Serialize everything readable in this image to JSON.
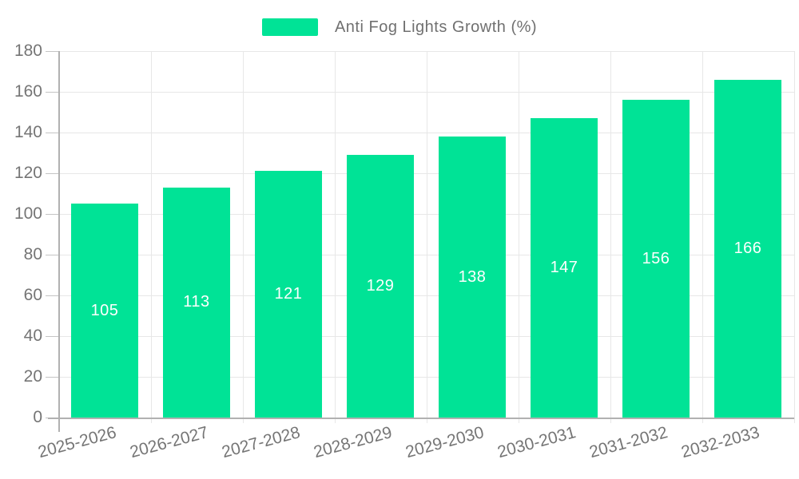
{
  "legend": {
    "label": "Anti Fog Lights Growth (%)"
  },
  "chart_data": {
    "type": "bar",
    "title": "Anti Fog Lights Growth (%)",
    "categories": [
      "2025-2026",
      "2026-2027",
      "2027-2028",
      "2028-2029",
      "2029-2030",
      "2030-2031",
      "2031-2032",
      "2032-2033"
    ],
    "series": [
      {
        "name": "Anti Fog Lights Growth (%)",
        "values": [
          105,
          113,
          121,
          129,
          138,
          147,
          156,
          166
        ]
      }
    ],
    "ylim": [
      0,
      180
    ],
    "yticks": [
      0,
      20,
      40,
      60,
      80,
      100,
      120,
      140,
      160,
      180
    ],
    "grid": true,
    "legend_position": "top",
    "x_label_rotation_deg": -15,
    "bar_color": "#00E396",
    "bar_label_color": "#ffffff",
    "axis_label_color": "#757575",
    "grid_color": "#e7e7e7",
    "axis_line_color": "#b1b1b1",
    "tick_color": "#c4c4c4"
  }
}
